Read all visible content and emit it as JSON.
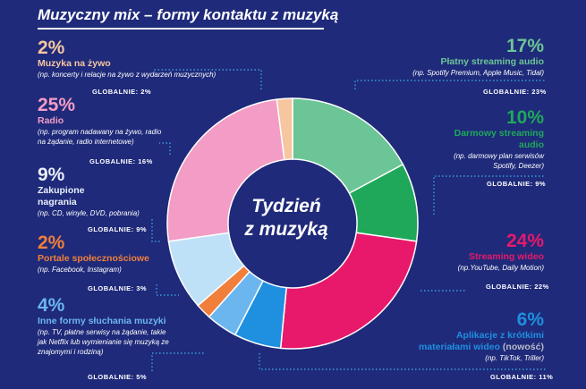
{
  "title": "Muzyczny mix – formy kontaktu z muzyką",
  "center_label_line1": "Tydzień",
  "center_label_line2": "z muzyką",
  "colors": {
    "background": "#1f2a7a",
    "live": "#f6c6a0",
    "radio": "#f39cc6",
    "physical": "#e9f0fb",
    "social": "#f07f3c",
    "other": "#5fb8f0",
    "paid_streaming": "#6cc596",
    "free_streaming": "#1fa85a",
    "video_streaming": "#e8186a",
    "short_video": "#1f8fe0",
    "dotted_line": "#3fb6ef"
  },
  "chart_data": {
    "type": "pie",
    "title": "Tydzień z muzyką",
    "slices": [
      {
        "label": "Płatny streaming audio",
        "value": 17,
        "global": "GLOBALNIE: 23%",
        "color": "#6cc596"
      },
      {
        "label": "Darmowy streaming audio",
        "value": 10,
        "global": "GLOBALNIE: 9%",
        "color": "#1fa85a"
      },
      {
        "label": "Streaming wideo",
        "value": 24,
        "global": "GLOBALNIE: 22%",
        "color": "#e8186a"
      },
      {
        "label": "Aplikacje z krótkimi materiałami wideo",
        "value": 6,
        "global": "GLOBALNIE: 11%",
        "color": "#1f8fe0"
      },
      {
        "label": "Inne formy słuchania muzyki",
        "value": 4,
        "global": "GLOBALNIE: 5%",
        "color": "#6cb6ef"
      },
      {
        "label": "Portale społecznościowe",
        "value": 2,
        "global": "GLOBALNIE: 3%",
        "color": "#f07f3c"
      },
      {
        "label": "Zakupione nagrania",
        "value": 9,
        "global": "GLOBALNIE: 9%",
        "color": "#bfe1f7"
      },
      {
        "label": "Radio",
        "value": 25,
        "global": "GLOBALNIE: 16%",
        "color": "#f39cc6"
      },
      {
        "label": "Muzyka na żywo",
        "value": 2,
        "global": "GLOBALNIE: 2%",
        "color": "#f6c6a0"
      }
    ]
  },
  "left": {
    "live": {
      "pct": "2%",
      "label": "Muzyka na żywo",
      "desc": "(np. koncerty i relacje na żywo z wydarzeń muzycznych)",
      "global": "GLOBALNIE: 2%"
    },
    "radio": {
      "pct": "25%",
      "label": "Radio",
      "desc1": "(np. program nadawany na żywo, radio",
      "desc2": "na żądanie, radio internetowe)",
      "global": "GLOBALNIE: 16%"
    },
    "physical": {
      "pct": "9%",
      "label1": "Zakupione",
      "label2": "nagrania",
      "desc": "(np. CD, winyle, DVD, pobrania)",
      "global": "GLOBALNIE: 9%"
    },
    "social": {
      "pct": "2%",
      "label": "Portale społecznościowe",
      "desc": "(np. Facebook, Instagram)",
      "global": "GLOBALNIE: 3%"
    },
    "other": {
      "pct": "4%",
      "label": "Inne formy słuchania muzyki",
      "desc1": "(np. TV, płatne serwisy na żądanie, takie",
      "desc2": "jak Netflix lub wymienianie się muzyką ze",
      "desc3": "znajomymi i rodziną)",
      "global": "GLOBALNIE: 5%"
    }
  },
  "right": {
    "paid": {
      "pct": "17%",
      "label": "Płatny streaming audio",
      "desc": "(np. Spotify Premium, Apple Music, Tidal)",
      "global": "GLOBALNIE: 23%"
    },
    "free": {
      "pct": "10%",
      "label1": "Darmowy streaming",
      "label2": "audio",
      "desc1": "(np. darmowy plan serwisów",
      "desc2": "Spotify, Deezer)",
      "global": "GLOBALNIE: 9%"
    },
    "video": {
      "pct": "24%",
      "label": "Streaming wideo",
      "desc": "(np.YouTube, Daily Motion)",
      "global": "GLOBALNIE: 22%"
    },
    "short": {
      "pct": "6%",
      "label1": "Aplikacje z krótkimi",
      "label2a": "materiałami wideo ",
      "label2b": "(nowość)",
      "desc": "(np. TikTok, Triller)",
      "global": "GLOBALNIE: 11%"
    }
  }
}
